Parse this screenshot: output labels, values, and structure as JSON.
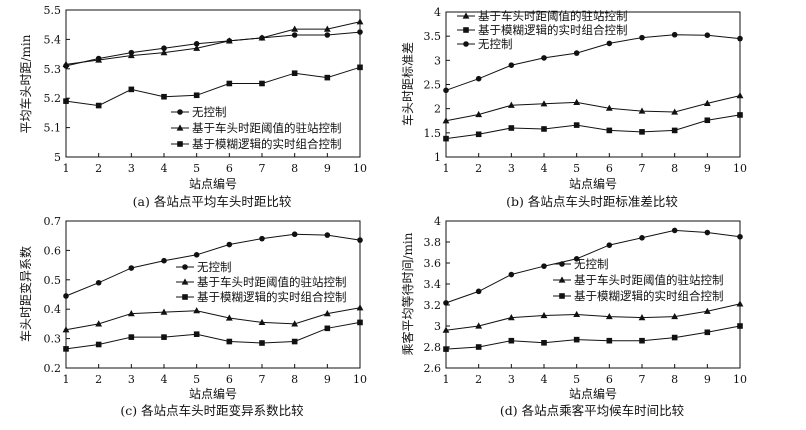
{
  "chart_data": [
    {
      "type": "line",
      "caption": "(a) 各站点平均车头时距比较",
      "xlabel": "站点编号",
      "ylabel": "平均车头时距/min",
      "x": [
        1,
        2,
        3,
        4,
        5,
        6,
        7,
        8,
        9,
        10
      ],
      "xlim": [
        1,
        10
      ],
      "ylim": [
        5.0,
        5.5
      ],
      "yticks": [
        5,
        5.1,
        5.2,
        5.3,
        5.4,
        5.5
      ],
      "legend_position": "bottom-center",
      "series": [
        {
          "name": "无控制",
          "marker": "circle",
          "values": [
            5.31,
            5.335,
            5.355,
            5.37,
            5.385,
            5.395,
            5.405,
            5.415,
            5.415,
            5.425
          ]
        },
        {
          "name": "基于车头时距阈值的驻站控制",
          "marker": "triangle",
          "values": [
            5.315,
            5.33,
            5.345,
            5.355,
            5.37,
            5.395,
            5.405,
            5.435,
            5.435,
            5.46
          ]
        },
        {
          "name": "基于模糊逻辑的实时组合控制",
          "marker": "square",
          "values": [
            5.19,
            5.175,
            5.23,
            5.205,
            5.21,
            5.25,
            5.25,
            5.285,
            5.27,
            5.305
          ]
        }
      ]
    },
    {
      "type": "line",
      "caption": "(b) 各站点车头时距标准差比较",
      "xlabel": "站点编号",
      "ylabel": "车头时距标准差",
      "x": [
        1,
        2,
        3,
        4,
        5,
        6,
        7,
        8,
        9,
        10
      ],
      "xlim": [
        1,
        10
      ],
      "ylim": [
        1.0,
        4.0
      ],
      "yticks": [
        1,
        1.5,
        2,
        2.5,
        3,
        3.5,
        4
      ],
      "legend_position": "top-left",
      "series": [
        {
          "name": "基于车头时距阈值的驻站控制",
          "marker": "triangle",
          "values": [
            1.75,
            1.88,
            2.07,
            2.1,
            2.13,
            2.01,
            1.95,
            1.93,
            2.11,
            2.27
          ]
        },
        {
          "name": "基于模糊逻辑的实时组合控制",
          "marker": "square",
          "values": [
            1.38,
            1.47,
            1.6,
            1.58,
            1.66,
            1.55,
            1.52,
            1.55,
            1.76,
            1.87
          ]
        },
        {
          "name": "无控制",
          "marker": "circle",
          "values": [
            2.38,
            2.62,
            2.9,
            3.05,
            3.15,
            3.35,
            3.47,
            3.53,
            3.52,
            3.45
          ]
        }
      ]
    },
    {
      "type": "line",
      "caption": "(c) 各站点车头时距变异系数比较",
      "xlabel": "站点编号",
      "ylabel": "车头时距变异系数",
      "x": [
        1,
        2,
        3,
        4,
        5,
        6,
        7,
        8,
        9,
        10
      ],
      "xlim": [
        1,
        10
      ],
      "ylim": [
        0.2,
        0.7
      ],
      "yticks": [
        0.2,
        0.3,
        0.4,
        0.5,
        0.6,
        0.7
      ],
      "legend_position": "center-right",
      "series": [
        {
          "name": "无控制",
          "marker": "circle",
          "values": [
            0.445,
            0.49,
            0.54,
            0.565,
            0.585,
            0.62,
            0.64,
            0.655,
            0.652,
            0.635
          ]
        },
        {
          "name": "基于车头时距阈值的驻站控制",
          "marker": "triangle",
          "values": [
            0.33,
            0.35,
            0.385,
            0.39,
            0.395,
            0.37,
            0.355,
            0.35,
            0.385,
            0.405
          ]
        },
        {
          "name": "基于模糊逻辑的实时组合控制",
          "marker": "square",
          "values": [
            0.265,
            0.28,
            0.305,
            0.305,
            0.315,
            0.29,
            0.285,
            0.29,
            0.335,
            0.355
          ]
        }
      ]
    },
    {
      "type": "line",
      "caption": "(d) 各站点乘客平均候车时间比较",
      "xlabel": "站点编号",
      "ylabel": "乘客平均等待时间/min",
      "x": [
        1,
        2,
        3,
        4,
        5,
        6,
        7,
        8,
        9,
        10
      ],
      "xlim": [
        1,
        10
      ],
      "ylim": [
        2.6,
        4.0
      ],
      "yticks": [
        2.6,
        2.8,
        3.0,
        3.2,
        3.4,
        3.6,
        3.8,
        4.0
      ],
      "yticklabels": [
        "2.6",
        "2.8",
        "3",
        "3.2",
        "3.4",
        "3.6",
        "3.8",
        "4"
      ],
      "legend_position": "center-right",
      "series": [
        {
          "name": "无控制",
          "marker": "circle",
          "values": [
            3.22,
            3.33,
            3.49,
            3.57,
            3.64,
            3.77,
            3.84,
            3.91,
            3.89,
            3.85
          ]
        },
        {
          "name": "基于车头时距阈值的驻站控制",
          "marker": "triangle",
          "values": [
            2.96,
            3.0,
            3.08,
            3.1,
            3.11,
            3.09,
            3.08,
            3.09,
            3.14,
            3.21
          ]
        },
        {
          "name": "基于模糊逻辑的实时组合控制",
          "marker": "square",
          "values": [
            2.78,
            2.8,
            2.86,
            2.84,
            2.87,
            2.86,
            2.86,
            2.89,
            2.94,
            3.0
          ]
        }
      ]
    }
  ]
}
